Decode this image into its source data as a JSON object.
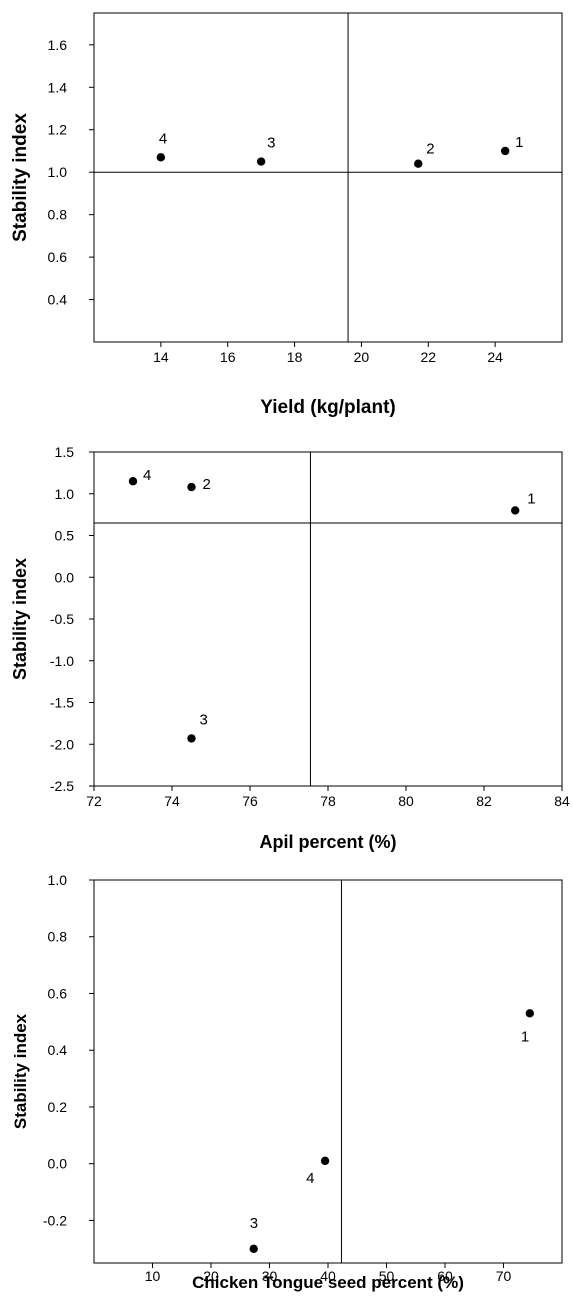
{
  "chart_data": [
    {
      "type": "scatter",
      "xlabel": "Yield (kg/plant)",
      "ylabel": "Stability index",
      "xlim": [
        12,
        26
      ],
      "ylim": [
        0.2,
        1.75
      ],
      "xticks": [
        14,
        16,
        18,
        20,
        22,
        24
      ],
      "yticks": [
        0.4,
        0.6,
        0.8,
        1.0,
        1.2,
        1.4,
        1.6
      ],
      "ref_x": 19.6,
      "ref_y": 1.0,
      "points": [
        {
          "label": "1",
          "x": 24.3,
          "y": 1.1
        },
        {
          "label": "2",
          "x": 21.7,
          "y": 1.04
        },
        {
          "label": "3",
          "x": 17.0,
          "y": 1.05
        },
        {
          "label": "4",
          "x": 14.0,
          "y": 1.07
        }
      ]
    },
    {
      "type": "scatter",
      "xlabel": "Apil percent (%)",
      "ylabel": "Stability index",
      "xlim": [
        72,
        84
      ],
      "ylim": [
        -2.5,
        1.5
      ],
      "xticks": [
        72,
        74,
        76,
        78,
        80,
        82,
        84
      ],
      "yticks": [
        -2.5,
        -2.0,
        -1.5,
        -1.0,
        -0.5,
        0.0,
        0.5,
        1.0,
        1.5
      ],
      "ref_x": 77.55,
      "ref_y": 0.65,
      "points": [
        {
          "label": "1",
          "x": 82.8,
          "y": 0.8
        },
        {
          "label": "2",
          "x": 74.5,
          "y": 1.08
        },
        {
          "label": "3",
          "x": 74.5,
          "y": -1.93
        },
        {
          "label": "4",
          "x": 73.0,
          "y": 1.15
        }
      ]
    },
    {
      "type": "scatter",
      "xlabel": "Chicken Tongue seed percent  (%)",
      "ylabel": "Stability index",
      "xlim": [
        0,
        80
      ],
      "ylim": [
        -0.35,
        1.0
      ],
      "xticks": [
        10,
        20,
        30,
        40,
        50,
        60,
        70
      ],
      "yticks": [
        -0.2,
        0.0,
        0.2,
        0.4,
        0.6,
        0.8,
        1.0
      ],
      "ref_x": 42.3,
      "ref_y": null,
      "points": [
        {
          "label": "1",
          "x": 74.5,
          "y": 0.53
        },
        {
          "label": "3",
          "x": 27.3,
          "y": -0.3
        },
        {
          "label": "4",
          "x": 39.5,
          "y": 0.01
        }
      ]
    }
  ]
}
